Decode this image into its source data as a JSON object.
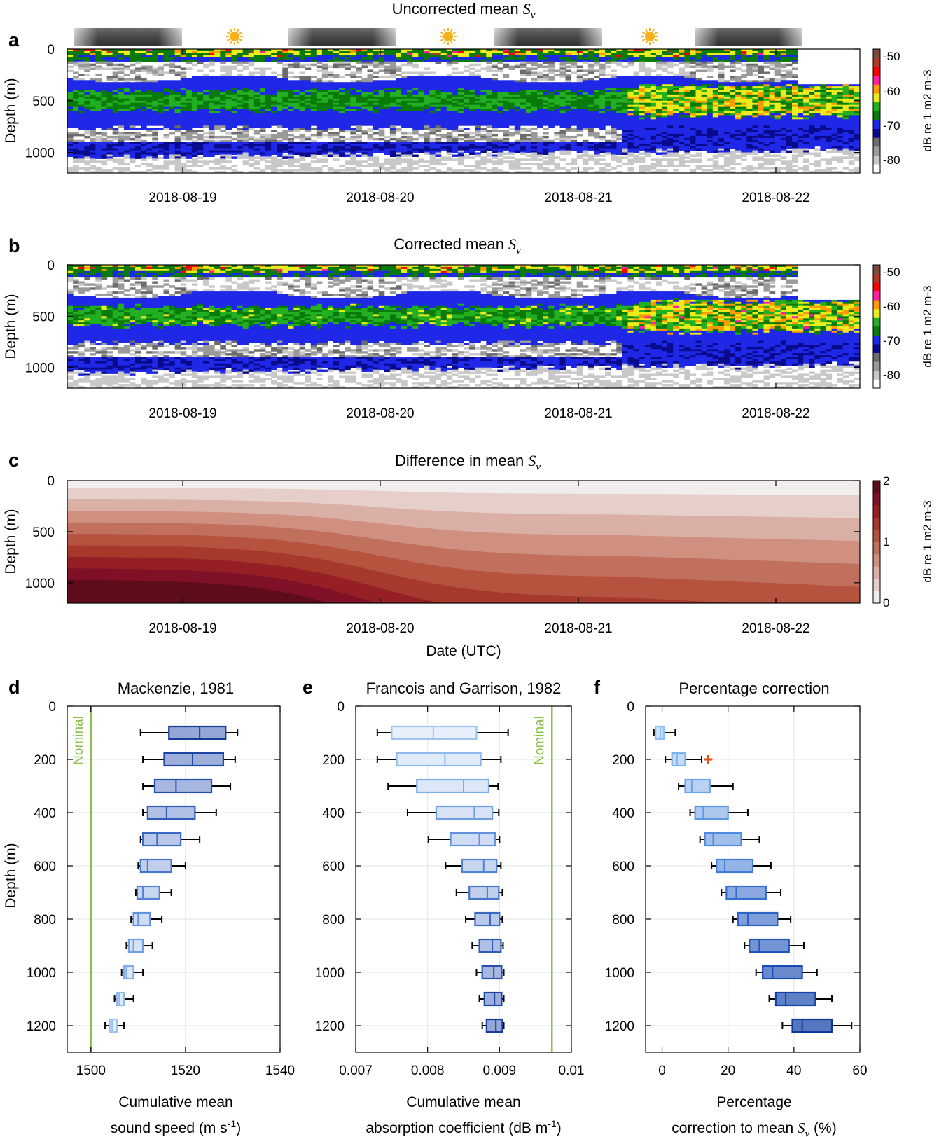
{
  "figure": {
    "x_axis_label": "Date (UTC)",
    "date_ticks": [
      "2018-08-19",
      "2018-08-20",
      "2018-08-21",
      "2018-08-22"
    ],
    "depth_label": "Depth (m)"
  },
  "panels": {
    "a": {
      "letter": "a",
      "title_prefix": "Uncorrected mean ",
      "title_symbol": "S",
      "title_sub": "v"
    },
    "b": {
      "letter": "b",
      "title_prefix": "Corrected mean ",
      "title_symbol": "S",
      "title_sub": "v"
    },
    "c": {
      "letter": "c",
      "title_prefix": "Difference in mean ",
      "title_symbol": "S",
      "title_sub": "v"
    },
    "d": {
      "letter": "d"
    },
    "e": {
      "letter": "e"
    },
    "f": {
      "letter": "f"
    }
  },
  "colorbars": {
    "sv": {
      "label": "dB re 1 m2 m-3",
      "ticks": [
        "-50",
        "-60",
        "-70",
        "-80"
      ]
    },
    "diff": {
      "label": "dB re 1 m2 m-3",
      "ticks": [
        "2",
        "1",
        "0"
      ]
    }
  },
  "daynight": [
    "night",
    "day",
    "night",
    "day",
    "night",
    "day",
    "night"
  ],
  "colors": {
    "sv_levels": [
      "#ffffff",
      "#c8c8c8",
      "#9a9a9a",
      "#6c6c6c",
      "#0a0a8c",
      "#1f28e6",
      "#0a7a0a",
      "#22b022",
      "#ecec1c",
      "#ff9a00",
      "#ff20a0",
      "#ff0000",
      "#b03a2a",
      "#7a4a3a"
    ],
    "diff_levels": [
      "#f1eded",
      "#e6cfca",
      "#daafa6",
      "#cf9080",
      "#c2705e",
      "#b5533f",
      "#a6382c",
      "#961f26",
      "#7f1025",
      "#5e0b1b"
    ],
    "nominal": "#8cbf4c",
    "outlier": "#d9541a"
  },
  "chart_data": [
    {
      "type": "heatmap",
      "panel": "a",
      "title": "Uncorrected mean Sv",
      "xlabel": "",
      "ylabel": "Depth (m)",
      "yticks": [
        0,
        500,
        1000
      ],
      "ylim": [
        0,
        1200
      ],
      "colorbar_range": [
        -85,
        -48
      ],
      "colorbar_ticks": [
        -50,
        -60,
        -70,
        -80
      ]
    },
    {
      "type": "heatmap",
      "panel": "b",
      "title": "Corrected mean Sv",
      "xlabel": "",
      "ylabel": "Depth (m)",
      "yticks": [
        0,
        500,
        1000
      ],
      "ylim": [
        0,
        1200
      ],
      "colorbar_range": [
        -85,
        -48
      ],
      "colorbar_ticks": [
        -50,
        -60,
        -70,
        -80
      ]
    },
    {
      "type": "heatmap",
      "panel": "c",
      "title": "Difference in mean Sv",
      "xlabel": "Date (UTC)",
      "ylabel": "Depth (m)",
      "yticks": [
        0,
        500,
        1000
      ],
      "ylim": [
        0,
        1200
      ],
      "colorbar_range": [
        0,
        2
      ],
      "colorbar_ticks": [
        0,
        1,
        2
      ]
    },
    {
      "type": "box",
      "panel": "d",
      "title": "Mackenzie, 1981",
      "xlabel_lines": [
        "Cumulative mean",
        "sound speed (m s-1)"
      ],
      "ylabel": "Depth (m)",
      "xlim": [
        1495,
        1540
      ],
      "xticks": [
        1500,
        1520,
        1540
      ],
      "yticks": [
        0,
        200,
        400,
        600,
        800,
        1000,
        1200
      ],
      "ylim": [
        0,
        1300
      ],
      "reference_line": {
        "label": "Nominal",
        "x": 1500
      },
      "depths": [
        100,
        200,
        300,
        400,
        500,
        600,
        700,
        800,
        900,
        1000,
        1100,
        1200
      ],
      "boxes": [
        {
          "whislo": 1510.5,
          "q1": 1516.5,
          "med": 1523,
          "q3": 1528.5,
          "whishi": 1531
        },
        {
          "whislo": 1511,
          "q1": 1515.5,
          "med": 1521.5,
          "q3": 1528,
          "whishi": 1530.5
        },
        {
          "whislo": 1511,
          "q1": 1513.5,
          "med": 1518,
          "q3": 1525.5,
          "whishi": 1529.5
        },
        {
          "whislo": 1511,
          "q1": 1512,
          "med": 1516,
          "q3": 1522,
          "whishi": 1526.5
        },
        {
          "whislo": 1510.5,
          "q1": 1511,
          "med": 1514,
          "q3": 1519,
          "whishi": 1523
        },
        {
          "whislo": 1510,
          "q1": 1510.5,
          "med": 1512,
          "q3": 1517,
          "whishi": 1520
        },
        {
          "whislo": 1509.5,
          "q1": 1509.8,
          "med": 1511,
          "q3": 1514.5,
          "whishi": 1517
        },
        {
          "whislo": 1508.5,
          "q1": 1509,
          "med": 1510,
          "q3": 1512.5,
          "whishi": 1515
        },
        {
          "whislo": 1507.5,
          "q1": 1508,
          "med": 1509,
          "q3": 1511,
          "whishi": 1513
        },
        {
          "whislo": 1506.5,
          "q1": 1507,
          "med": 1507.5,
          "q3": 1509,
          "whishi": 1511
        },
        {
          "whislo": 1505,
          "q1": 1505.5,
          "med": 1506,
          "q3": 1507,
          "whishi": 1509
        },
        {
          "whislo": 1503,
          "q1": 1504,
          "med": 1504.5,
          "q3": 1505.5,
          "whishi": 1507
        }
      ]
    },
    {
      "type": "box",
      "panel": "e",
      "title": "Francois and Garrison, 1982",
      "xlabel_lines": [
        "Cumulative mean",
        "absorption coefficient (dB m-1)"
      ],
      "ylabel": "",
      "xlim": [
        0.007,
        0.01
      ],
      "xticks": [
        0.007,
        0.008,
        0.009,
        0.01
      ],
      "xticklabels": [
        "0.007",
        "0.008",
        "0.009",
        "0.01"
      ],
      "yticks": [
        0,
        200,
        400,
        600,
        800,
        1000,
        1200
      ],
      "ylim": [
        0,
        1300
      ],
      "reference_line": {
        "label": "Nominal",
        "x": 0.00973
      },
      "depths": [
        100,
        200,
        300,
        400,
        500,
        600,
        700,
        800,
        900,
        1000,
        1100,
        1200
      ],
      "boxes": [
        {
          "whislo": 0.0073,
          "q1": 0.0075,
          "med": 0.00808,
          "q3": 0.00868,
          "whishi": 0.00912
        },
        {
          "whislo": 0.0073,
          "q1": 0.00757,
          "med": 0.00824,
          "q3": 0.00874,
          "whishi": 0.00902
        },
        {
          "whislo": 0.00745,
          "q1": 0.00785,
          "med": 0.0085,
          "q3": 0.00885,
          "whishi": 0.00898
        },
        {
          "whislo": 0.00772,
          "q1": 0.00812,
          "med": 0.00865,
          "q3": 0.0089,
          "whishi": 0.00899
        },
        {
          "whislo": 0.00801,
          "q1": 0.00832,
          "med": 0.00872,
          "q3": 0.00894,
          "whishi": 0.009
        },
        {
          "whislo": 0.00825,
          "q1": 0.00848,
          "med": 0.00878,
          "q3": 0.00896,
          "whishi": 0.00902
        },
        {
          "whislo": 0.0084,
          "q1": 0.00858,
          "med": 0.00883,
          "q3": 0.00899,
          "whishi": 0.00904
        },
        {
          "whislo": 0.00853,
          "q1": 0.00866,
          "med": 0.00887,
          "q3": 0.009,
          "whishi": 0.00904
        },
        {
          "whislo": 0.00862,
          "q1": 0.00872,
          "med": 0.0089,
          "q3": 0.00902,
          "whishi": 0.00905
        },
        {
          "whislo": 0.00868,
          "q1": 0.00876,
          "med": 0.00892,
          "q3": 0.00903,
          "whishi": 0.00906
        },
        {
          "whislo": 0.00872,
          "q1": 0.00879,
          "med": 0.00893,
          "q3": 0.00903,
          "whishi": 0.00906
        },
        {
          "whislo": 0.00876,
          "q1": 0.00882,
          "med": 0.00895,
          "q3": 0.00904,
          "whishi": 0.00906
        }
      ]
    },
    {
      "type": "box",
      "panel": "f",
      "title": "Percentage correction",
      "xlabel_lines": [
        "Percentage",
        "correction to mean Sv (%)"
      ],
      "ylabel": "",
      "xlim": [
        -5,
        60
      ],
      "xticks": [
        0,
        20,
        40,
        60
      ],
      "yticks": [
        0,
        200,
        400,
        600,
        800,
        1000,
        1200
      ],
      "ylim": [
        0,
        1300
      ],
      "depths": [
        100,
        200,
        300,
        400,
        500,
        600,
        700,
        800,
        900,
        1000,
        1100,
        1200
      ],
      "boxes": [
        {
          "whislo": -2.5,
          "q1": -2,
          "med": -0.5,
          "q3": 0.5,
          "whishi": 4
        },
        {
          "whislo": 1,
          "q1": 3,
          "med": 4.5,
          "q3": 7,
          "whishi": 12,
          "outliers": [
            14
          ]
        },
        {
          "whislo": 5,
          "q1": 7,
          "med": 9,
          "q3": 14.5,
          "whishi": 21.5
        },
        {
          "whislo": 8.5,
          "q1": 10,
          "med": 12.5,
          "q3": 20,
          "whishi": 26
        },
        {
          "whislo": 11.5,
          "q1": 13,
          "med": 15.5,
          "q3": 24,
          "whishi": 29.5
        },
        {
          "whislo": 15,
          "q1": 16.5,
          "med": 19,
          "q3": 27.5,
          "whishi": 33
        },
        {
          "whislo": 18,
          "q1": 19.5,
          "med": 22.5,
          "q3": 31.5,
          "whishi": 36
        },
        {
          "whislo": 21.5,
          "q1": 23,
          "med": 26,
          "q3": 35,
          "whishi": 39
        },
        {
          "whislo": 25,
          "q1": 26.5,
          "med": 29.5,
          "q3": 38.5,
          "whishi": 43
        },
        {
          "whislo": 28.5,
          "q1": 30.5,
          "med": 33.5,
          "q3": 42.5,
          "whishi": 47
        },
        {
          "whislo": 32.5,
          "q1": 34.5,
          "med": 37.5,
          "q3": 46.5,
          "whishi": 51.5
        },
        {
          "whislo": 36.5,
          "q1": 39.5,
          "med": 42.5,
          "q3": 51.5,
          "whishi": 57.5
        }
      ]
    }
  ]
}
